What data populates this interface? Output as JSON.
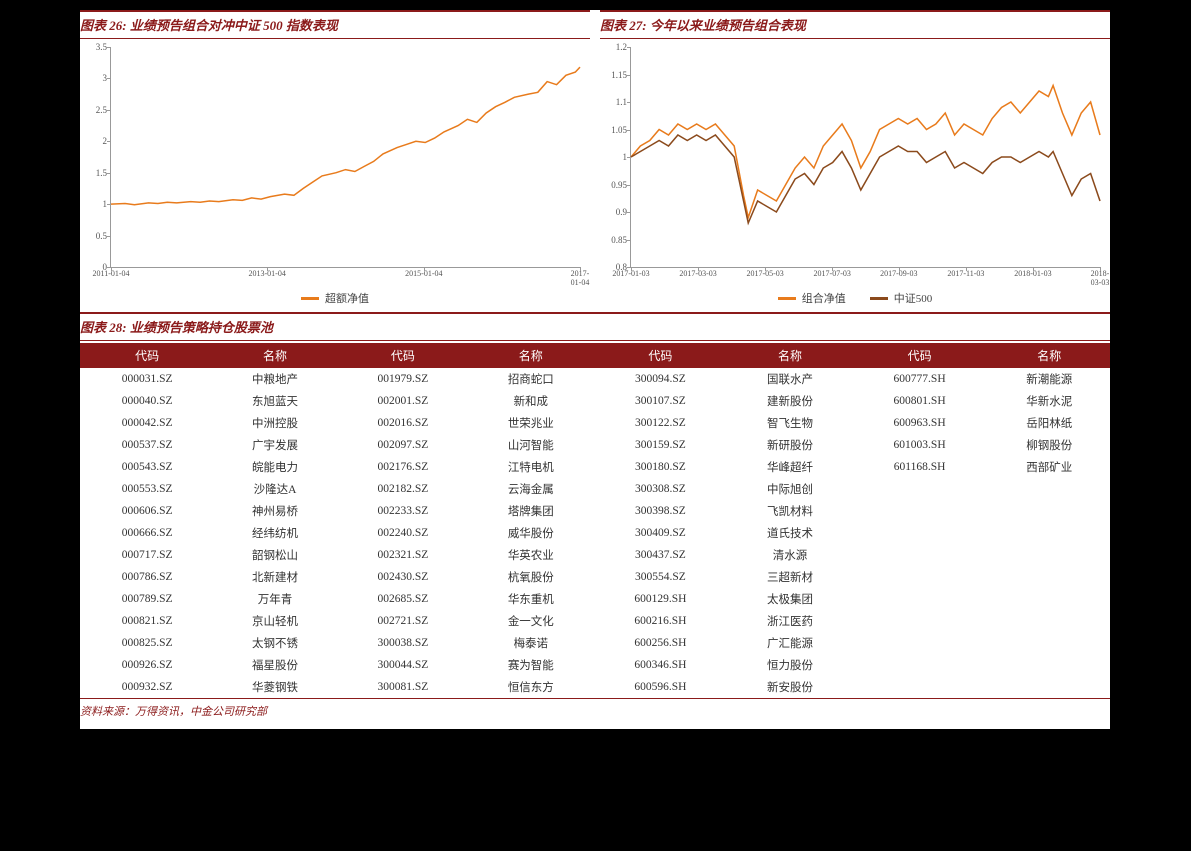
{
  "chart26": {
    "title": "图表 26: 业绩预告组合对冲中证 500 指数表现",
    "type": "line",
    "background_color": "#ffffff",
    "grid_color": "#d0d0d0",
    "line_color": "#e87b1c",
    "line_width": 1.5,
    "ylim": [
      0,
      3.5
    ],
    "yticks": [
      0,
      0.5,
      1,
      1.5,
      2,
      2.5,
      3,
      3.5
    ],
    "xticks": [
      "2011-01-04",
      "2013-01-04",
      "2015-01-04",
      "2017-01-04"
    ],
    "xtick_pos": [
      0,
      0.333,
      0.667,
      1.0
    ],
    "legend": [
      {
        "label": "超额净值",
        "color": "#e87b1c"
      }
    ],
    "series": [
      {
        "color": "#e87b1c",
        "points": [
          [
            0.0,
            1.0
          ],
          [
            0.03,
            1.01
          ],
          [
            0.05,
            0.99
          ],
          [
            0.08,
            1.02
          ],
          [
            0.1,
            1.01
          ],
          [
            0.12,
            1.03
          ],
          [
            0.14,
            1.02
          ],
          [
            0.17,
            1.04
          ],
          [
            0.19,
            1.03
          ],
          [
            0.21,
            1.05
          ],
          [
            0.23,
            1.04
          ],
          [
            0.26,
            1.07
          ],
          [
            0.28,
            1.06
          ],
          [
            0.3,
            1.1
          ],
          [
            0.32,
            1.08
          ],
          [
            0.34,
            1.12
          ],
          [
            0.37,
            1.16
          ],
          [
            0.39,
            1.14
          ],
          [
            0.41,
            1.25
          ],
          [
            0.43,
            1.35
          ],
          [
            0.45,
            1.45
          ],
          [
            0.48,
            1.5
          ],
          [
            0.5,
            1.55
          ],
          [
            0.52,
            1.52
          ],
          [
            0.54,
            1.6
          ],
          [
            0.56,
            1.68
          ],
          [
            0.58,
            1.8
          ],
          [
            0.61,
            1.9
          ],
          [
            0.63,
            1.95
          ],
          [
            0.65,
            2.0
          ],
          [
            0.67,
            1.98
          ],
          [
            0.69,
            2.05
          ],
          [
            0.71,
            2.15
          ],
          [
            0.74,
            2.25
          ],
          [
            0.76,
            2.35
          ],
          [
            0.78,
            2.3
          ],
          [
            0.8,
            2.45
          ],
          [
            0.82,
            2.55
          ],
          [
            0.84,
            2.62
          ],
          [
            0.86,
            2.7
          ],
          [
            0.89,
            2.75
          ],
          [
            0.91,
            2.78
          ],
          [
            0.93,
            2.95
          ],
          [
            0.95,
            2.9
          ],
          [
            0.97,
            3.05
          ],
          [
            0.99,
            3.1
          ],
          [
            1.0,
            3.18
          ]
        ]
      }
    ]
  },
  "chart27": {
    "title": "图表 27: 今年以来业绩预告组合表现",
    "type": "line",
    "background_color": "#ffffff",
    "grid_color": "#d0d0d0",
    "ylim": [
      0.8,
      1.2
    ],
    "yticks": [
      0.8,
      0.85,
      0.9,
      0.95,
      1,
      1.05,
      1.1,
      1.15,
      1.2
    ],
    "xticks": [
      "2017-01-03",
      "2017-03-03",
      "2017-05-03",
      "2017-07-03",
      "2017-09-03",
      "2017-11-03",
      "2018-01-03",
      "2018-03-03"
    ],
    "xtick_pos": [
      0,
      0.143,
      0.286,
      0.429,
      0.571,
      0.714,
      0.857,
      1.0
    ],
    "legend": [
      {
        "label": "组合净值",
        "color": "#e87b1c"
      },
      {
        "label": "中证500",
        "color": "#8b4a1c"
      }
    ],
    "series": [
      {
        "color": "#e87b1c",
        "line_width": 1.5,
        "points": [
          [
            0.0,
            1.0
          ],
          [
            0.02,
            1.02
          ],
          [
            0.04,
            1.03
          ],
          [
            0.06,
            1.05
          ],
          [
            0.08,
            1.04
          ],
          [
            0.1,
            1.06
          ],
          [
            0.12,
            1.05
          ],
          [
            0.14,
            1.06
          ],
          [
            0.16,
            1.05
          ],
          [
            0.18,
            1.06
          ],
          [
            0.2,
            1.04
          ],
          [
            0.22,
            1.02
          ],
          [
            0.24,
            0.93
          ],
          [
            0.25,
            0.89
          ],
          [
            0.27,
            0.94
          ],
          [
            0.29,
            0.93
          ],
          [
            0.31,
            0.92
          ],
          [
            0.33,
            0.95
          ],
          [
            0.35,
            0.98
          ],
          [
            0.37,
            1.0
          ],
          [
            0.39,
            0.98
          ],
          [
            0.41,
            1.02
          ],
          [
            0.43,
            1.04
          ],
          [
            0.45,
            1.06
          ],
          [
            0.47,
            1.03
          ],
          [
            0.49,
            0.98
          ],
          [
            0.51,
            1.01
          ],
          [
            0.53,
            1.05
          ],
          [
            0.55,
            1.06
          ],
          [
            0.57,
            1.07
          ],
          [
            0.59,
            1.06
          ],
          [
            0.61,
            1.07
          ],
          [
            0.63,
            1.05
          ],
          [
            0.65,
            1.06
          ],
          [
            0.67,
            1.08
          ],
          [
            0.69,
            1.04
          ],
          [
            0.71,
            1.06
          ],
          [
            0.73,
            1.05
          ],
          [
            0.75,
            1.04
          ],
          [
            0.77,
            1.07
          ],
          [
            0.79,
            1.09
          ],
          [
            0.81,
            1.1
          ],
          [
            0.83,
            1.08
          ],
          [
            0.85,
            1.1
          ],
          [
            0.87,
            1.12
          ],
          [
            0.89,
            1.11
          ],
          [
            0.9,
            1.13
          ],
          [
            0.92,
            1.08
          ],
          [
            0.94,
            1.04
          ],
          [
            0.96,
            1.08
          ],
          [
            0.98,
            1.1
          ],
          [
            1.0,
            1.04
          ]
        ]
      },
      {
        "color": "#8b4a1c",
        "line_width": 1.5,
        "points": [
          [
            0.0,
            1.0
          ],
          [
            0.02,
            1.01
          ],
          [
            0.04,
            1.02
          ],
          [
            0.06,
            1.03
          ],
          [
            0.08,
            1.02
          ],
          [
            0.1,
            1.04
          ],
          [
            0.12,
            1.03
          ],
          [
            0.14,
            1.04
          ],
          [
            0.16,
            1.03
          ],
          [
            0.18,
            1.04
          ],
          [
            0.2,
            1.02
          ],
          [
            0.22,
            1.0
          ],
          [
            0.24,
            0.92
          ],
          [
            0.25,
            0.88
          ],
          [
            0.27,
            0.92
          ],
          [
            0.29,
            0.91
          ],
          [
            0.31,
            0.9
          ],
          [
            0.33,
            0.93
          ],
          [
            0.35,
            0.96
          ],
          [
            0.37,
            0.97
          ],
          [
            0.39,
            0.95
          ],
          [
            0.41,
            0.98
          ],
          [
            0.43,
            0.99
          ],
          [
            0.45,
            1.01
          ],
          [
            0.47,
            0.98
          ],
          [
            0.49,
            0.94
          ],
          [
            0.51,
            0.97
          ],
          [
            0.53,
            1.0
          ],
          [
            0.55,
            1.01
          ],
          [
            0.57,
            1.02
          ],
          [
            0.59,
            1.01
          ],
          [
            0.61,
            1.01
          ],
          [
            0.63,
            0.99
          ],
          [
            0.65,
            1.0
          ],
          [
            0.67,
            1.01
          ],
          [
            0.69,
            0.98
          ],
          [
            0.71,
            0.99
          ],
          [
            0.73,
            0.98
          ],
          [
            0.75,
            0.97
          ],
          [
            0.77,
            0.99
          ],
          [
            0.79,
            1.0
          ],
          [
            0.81,
            1.0
          ],
          [
            0.83,
            0.99
          ],
          [
            0.85,
            1.0
          ],
          [
            0.87,
            1.01
          ],
          [
            0.89,
            1.0
          ],
          [
            0.9,
            1.01
          ],
          [
            0.92,
            0.97
          ],
          [
            0.94,
            0.93
          ],
          [
            0.96,
            0.96
          ],
          [
            0.98,
            0.97
          ],
          [
            1.0,
            0.92
          ]
        ]
      }
    ]
  },
  "table28": {
    "title": "图表 28: 业绩预告策略持仓股票池",
    "header_bg": "#8b1a1a",
    "header_color": "#ffffff",
    "columns": [
      "代码",
      "名称",
      "代码",
      "名称",
      "代码",
      "名称",
      "代码",
      "名称"
    ],
    "rows": [
      [
        "000031.SZ",
        "中粮地产",
        "001979.SZ",
        "招商蛇口",
        "300094.SZ",
        "国联水产",
        "600777.SH",
        "新潮能源"
      ],
      [
        "000040.SZ",
        "东旭蓝天",
        "002001.SZ",
        "新和成",
        "300107.SZ",
        "建新股份",
        "600801.SH",
        "华新水泥"
      ],
      [
        "000042.SZ",
        "中洲控股",
        "002016.SZ",
        "世荣兆业",
        "300122.SZ",
        "智飞生物",
        "600963.SH",
        "岳阳林纸"
      ],
      [
        "000537.SZ",
        "广宇发展",
        "002097.SZ",
        "山河智能",
        "300159.SZ",
        "新研股份",
        "601003.SH",
        "柳钢股份"
      ],
      [
        "000543.SZ",
        "皖能电力",
        "002176.SZ",
        "江特电机",
        "300180.SZ",
        "华峰超纤",
        "601168.SH",
        "西部矿业"
      ],
      [
        "000553.SZ",
        "沙隆达A",
        "002182.SZ",
        "云海金属",
        "300308.SZ",
        "中际旭创",
        "",
        ""
      ],
      [
        "000606.SZ",
        "神州易桥",
        "002233.SZ",
        "塔牌集团",
        "300398.SZ",
        "飞凯材料",
        "",
        ""
      ],
      [
        "000666.SZ",
        "经纬纺机",
        "002240.SZ",
        "威华股份",
        "300409.SZ",
        "道氏技术",
        "",
        ""
      ],
      [
        "000717.SZ",
        "韶钢松山",
        "002321.SZ",
        "华英农业",
        "300437.SZ",
        "清水源",
        "",
        ""
      ],
      [
        "000786.SZ",
        "北新建材",
        "002430.SZ",
        "杭氧股份",
        "300554.SZ",
        "三超新材",
        "",
        ""
      ],
      [
        "000789.SZ",
        "万年青",
        "002685.SZ",
        "华东重机",
        "600129.SH",
        "太极集团",
        "",
        ""
      ],
      [
        "000821.SZ",
        "京山轻机",
        "002721.SZ",
        "金一文化",
        "600216.SH",
        "浙江医药",
        "",
        ""
      ],
      [
        "000825.SZ",
        "太钢不锈",
        "300038.SZ",
        "梅泰诺",
        "600256.SH",
        "广汇能源",
        "",
        ""
      ],
      [
        "000926.SZ",
        "福星股份",
        "300044.SZ",
        "赛为智能",
        "600346.SH",
        "恒力股份",
        "",
        ""
      ],
      [
        "000932.SZ",
        "华菱钢铁",
        "300081.SZ",
        "恒信东方",
        "600596.SH",
        "新安股份",
        "",
        ""
      ]
    ]
  },
  "source_note": "资料来源：万得资讯，中金公司研究部"
}
